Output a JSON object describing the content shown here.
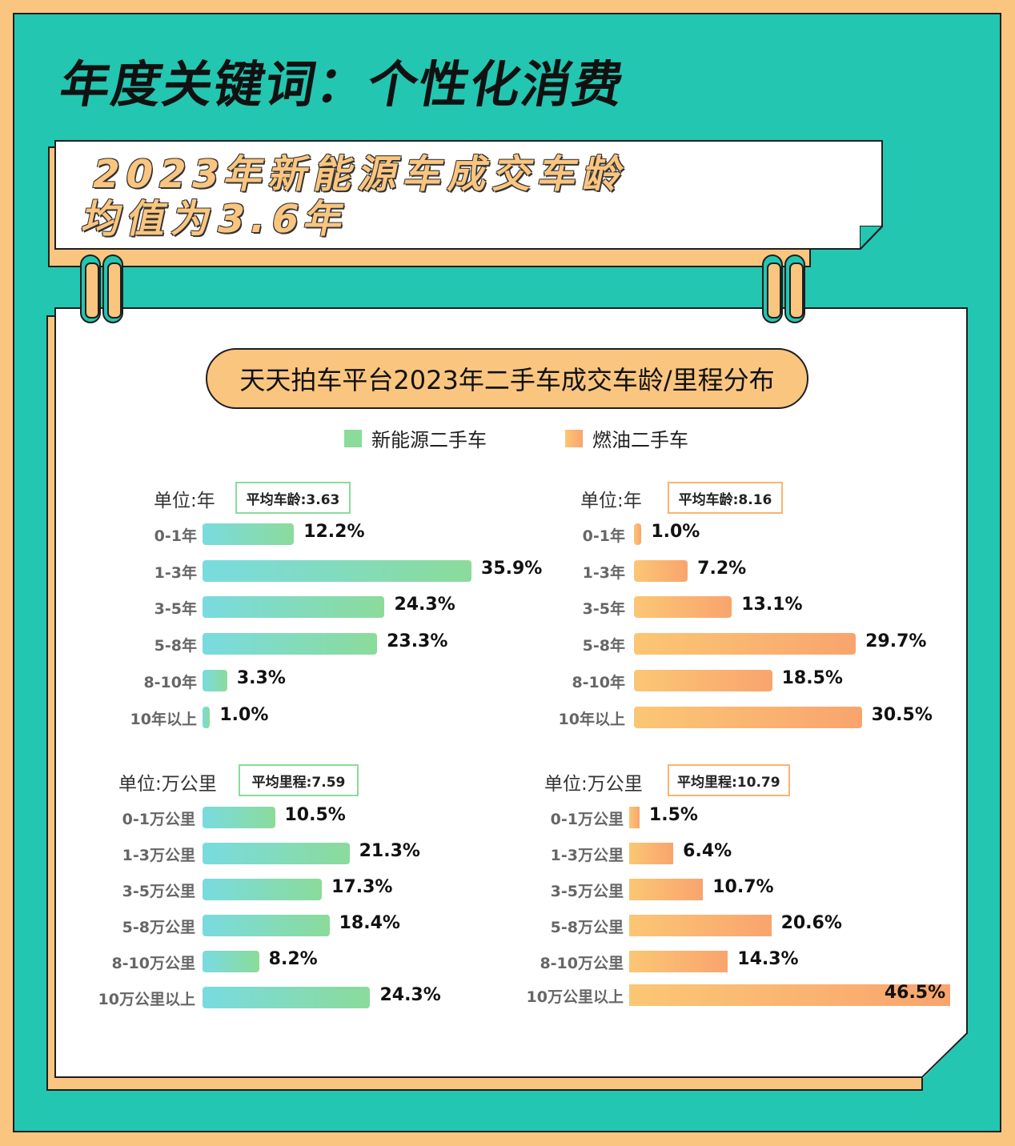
{
  "header": {
    "title": "年度关键词：个性化消费",
    "banner_line1": "2023年新能源车成交车龄",
    "banner_line2": "均值为3.6年"
  },
  "chart_header": {
    "title": "天天拍车平台2023年二手车成交车龄/里程分布",
    "legend": [
      {
        "label": "新能源二手车",
        "color": "#8BDB9A"
      },
      {
        "label": "燃油二手车",
        "color": "#F9B46E"
      }
    ]
  },
  "colors": {
    "teal_bg": "#23C6B1",
    "orange": "#FAC57F",
    "ev_gradient": [
      "#79DBE0",
      "#8BDB9A"
    ],
    "fuel_gradient": [
      "#FBC774",
      "#F9A46E"
    ]
  },
  "chart_data": [
    {
      "type": "bar",
      "orientation": "horizontal",
      "title": "新能源二手车 成交车龄分布",
      "unit_label": "单位:年",
      "average_label": "平均车龄:3.63",
      "categories": [
        "0-1年",
        "1-3年",
        "3-5年",
        "5-8年",
        "8-10年",
        "10年以上"
      ],
      "values": [
        12.2,
        35.9,
        24.3,
        23.3,
        3.3,
        1.0
      ],
      "value_labels": [
        "12.2%",
        "35.9%",
        "24.3%",
        "23.3%",
        "3.3%",
        "1.0%"
      ],
      "series_name": "新能源二手车"
    },
    {
      "type": "bar",
      "orientation": "horizontal",
      "title": "燃油二手车 成交车龄分布",
      "unit_label": "单位:年",
      "average_label": "平均车龄:8.16",
      "categories": [
        "0-1年",
        "1-3年",
        "3-5年",
        "5-8年",
        "8-10年",
        "10年以上"
      ],
      "values": [
        1.0,
        7.2,
        13.1,
        29.7,
        18.5,
        30.5
      ],
      "value_labels": [
        "1.0%",
        "7.2%",
        "13.1%",
        "29.7%",
        "18.5%",
        "30.5%"
      ],
      "series_name": "燃油二手车"
    },
    {
      "type": "bar",
      "orientation": "horizontal",
      "title": "新能源二手车 成交里程分布",
      "unit_label": "单位:万公里",
      "average_label": "平均里程:7.59",
      "categories": [
        "0-1万公里",
        "1-3万公里",
        "3-5万公里",
        "5-8万公里",
        "8-10万公里",
        "10万公里以上"
      ],
      "values": [
        10.5,
        21.3,
        17.3,
        18.4,
        8.2,
        24.3
      ],
      "value_labels": [
        "10.5%",
        "21.3%",
        "17.3%",
        "18.4%",
        "8.2%",
        "24.3%"
      ],
      "series_name": "新能源二手车"
    },
    {
      "type": "bar",
      "orientation": "horizontal",
      "title": "燃油二手车 成交里程分布",
      "unit_label": "单位:万公里",
      "average_label": "平均里程:10.79",
      "categories": [
        "0-1万公里",
        "1-3万公里",
        "3-5万公里",
        "5-8万公里",
        "8-10万公里",
        "10万公里以上"
      ],
      "values": [
        1.5,
        6.4,
        10.7,
        20.6,
        14.3,
        46.5
      ],
      "value_labels": [
        "1.5%",
        "6.4%",
        "10.7%",
        "20.6%",
        "14.3%",
        "46.5%"
      ],
      "series_name": "燃油二手车"
    }
  ]
}
